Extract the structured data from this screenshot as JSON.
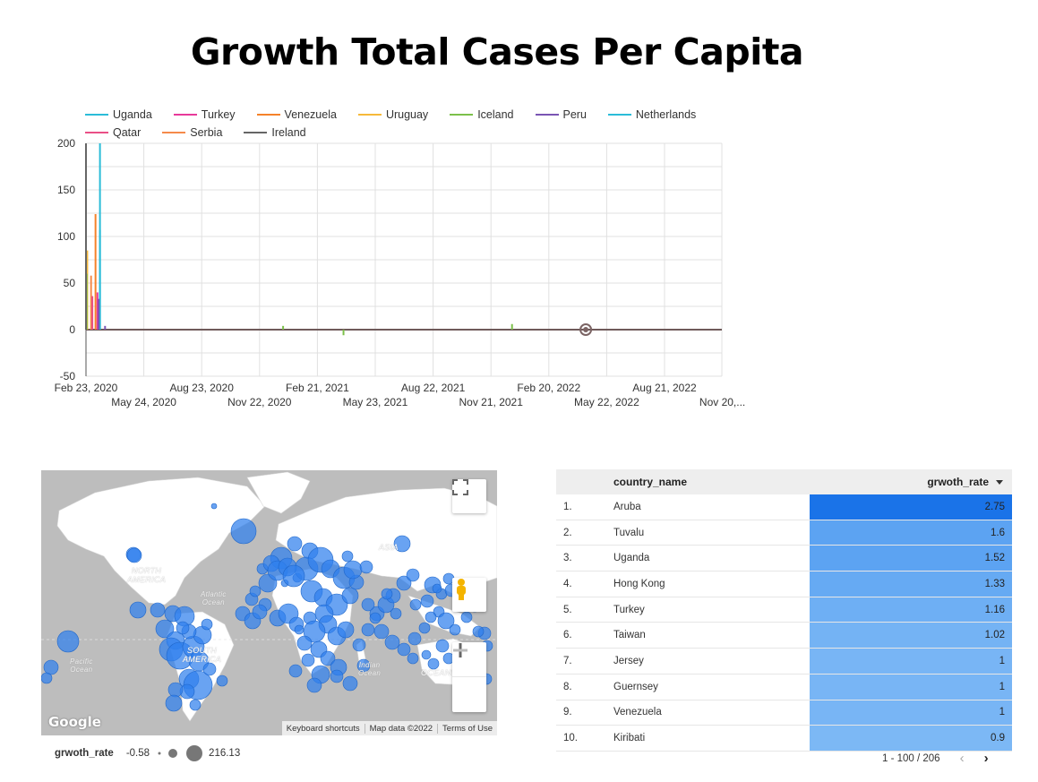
{
  "title": "Growth Total Cases Per Capita",
  "legend": [
    {
      "name": "Uganda",
      "color": "#2bbcd8"
    },
    {
      "name": "Turkey",
      "color": "#e8399a"
    },
    {
      "name": "Venezuela",
      "color": "#f5822a"
    },
    {
      "name": "Uruguay",
      "color": "#f6b93a"
    },
    {
      "name": "Iceland",
      "color": "#7cc04a"
    },
    {
      "name": "Peru",
      "color": "#7a55b3"
    },
    {
      "name": "Netherlands",
      "color": "#2bbcd8"
    },
    {
      "name": "Qatar",
      "color": "#ea4f86"
    },
    {
      "name": "Serbia",
      "color": "#f58a4a"
    },
    {
      "name": "Ireland",
      "color": "#666666"
    }
  ],
  "chart_data": {
    "type": "line",
    "ylim": [
      -50,
      200
    ],
    "yticks": [
      "200",
      "150",
      "100",
      "50",
      "0",
      "-50"
    ],
    "xticks_top": [
      "Feb 23, 2020",
      "Aug 23, 2020",
      "Feb 21, 2021",
      "Aug 22, 2021",
      "Feb 20, 2022",
      "Aug 21, 2022"
    ],
    "xticks_bottom": [
      "May 24, 2020",
      "Nov 22, 2020",
      "May 23, 2021",
      "Nov 21, 2021",
      "May 22, 2022",
      "Nov 20,..."
    ],
    "x_range_days": [
      0,
      1000
    ],
    "spikes": [
      {
        "series": "Netherlands",
        "color": "#2bbcd8",
        "day": 22,
        "value": 200
      },
      {
        "series": "Venezuela",
        "color": "#f5822a",
        "day": 15,
        "value": 124
      },
      {
        "series": "Uganda",
        "color": "#2bbcd8",
        "day": 22,
        "value": 107
      },
      {
        "series": "Uruguay",
        "color": "#f6b93a",
        "day": 2,
        "value": 85
      },
      {
        "series": "Iceland",
        "color": "#7cc04a",
        "day": 1,
        "value": 60
      },
      {
        "series": "Serbia",
        "color": "#f58a4a",
        "day": 8,
        "value": 58
      },
      {
        "series": "Turkey",
        "color": "#e8399a",
        "day": 18,
        "value": 40
      },
      {
        "series": "Qatar",
        "color": "#ea4f86",
        "day": 10,
        "value": 36
      },
      {
        "series": "Ireland",
        "color": "#666666",
        "day": 0,
        "value": 200
      },
      {
        "series": "Peru",
        "color": "#7a55b3",
        "day": 20,
        "value": 33
      },
      {
        "series": "Peru",
        "color": "#7a55b3",
        "day": 30,
        "value": 4
      },
      {
        "series": "Iceland",
        "color": "#7cc04a",
        "day": 310,
        "value": 4
      },
      {
        "series": "Iceland",
        "color": "#7cc04a",
        "day": 405,
        "value": -6
      },
      {
        "series": "Iceland",
        "color": "#7cc04a",
        "day": 670,
        "value": 6
      }
    ],
    "marker_day": 786
  },
  "map": {
    "labels": {
      "north_america": "NORTH\nAMERICA",
      "south_america": "SOUTH\nAMERICA",
      "asia": "ASIA",
      "atlantic": "Atlantic\nOcean",
      "pacific": "Pacific\nOcean",
      "indian": "Indian\nOcean",
      "oceania": "OCEANI"
    },
    "google": "Google",
    "footer": [
      "Keyboard shortcuts",
      "Map data ©2022",
      "Terms of Use"
    ],
    "bubble_color": "#2f80ed"
  },
  "size_legend": {
    "label": "grwoth_rate",
    "min": "-0.58",
    "max": "216.13"
  },
  "table": {
    "headers": {
      "name": "country_name",
      "value": "grwoth_rate"
    },
    "sort_icon": "sort-descending-icon",
    "rows": [
      {
        "idx": "1.",
        "name": "Aruba",
        "value": "2.75",
        "bg": "#1a73e8"
      },
      {
        "idx": "2.",
        "name": "Tuvalu",
        "value": "1.6",
        "bg": "#5ca3f2"
      },
      {
        "idx": "3.",
        "name": "Uganda",
        "value": "1.52",
        "bg": "#5ca3f2"
      },
      {
        "idx": "4.",
        "name": "Hong Kong",
        "value": "1.33",
        "bg": "#66aaf3"
      },
      {
        "idx": "5.",
        "name": "Turkey",
        "value": "1.16",
        "bg": "#6eaff4"
      },
      {
        "idx": "6.",
        "name": "Taiwan",
        "value": "1.02",
        "bg": "#74b3f4"
      },
      {
        "idx": "7.",
        "name": "Jersey",
        "value": "1",
        "bg": "#78b5f5"
      },
      {
        "idx": "8.",
        "name": "Guernsey",
        "value": "1",
        "bg": "#78b5f5"
      },
      {
        "idx": "9.",
        "name": "Venezuela",
        "value": "1",
        "bg": "#78b5f5"
      },
      {
        "idx": "10.",
        "name": "Kiribati",
        "value": "0.9",
        "bg": "#7cb8f5"
      }
    ],
    "pager": "1 - 100 / 206"
  }
}
